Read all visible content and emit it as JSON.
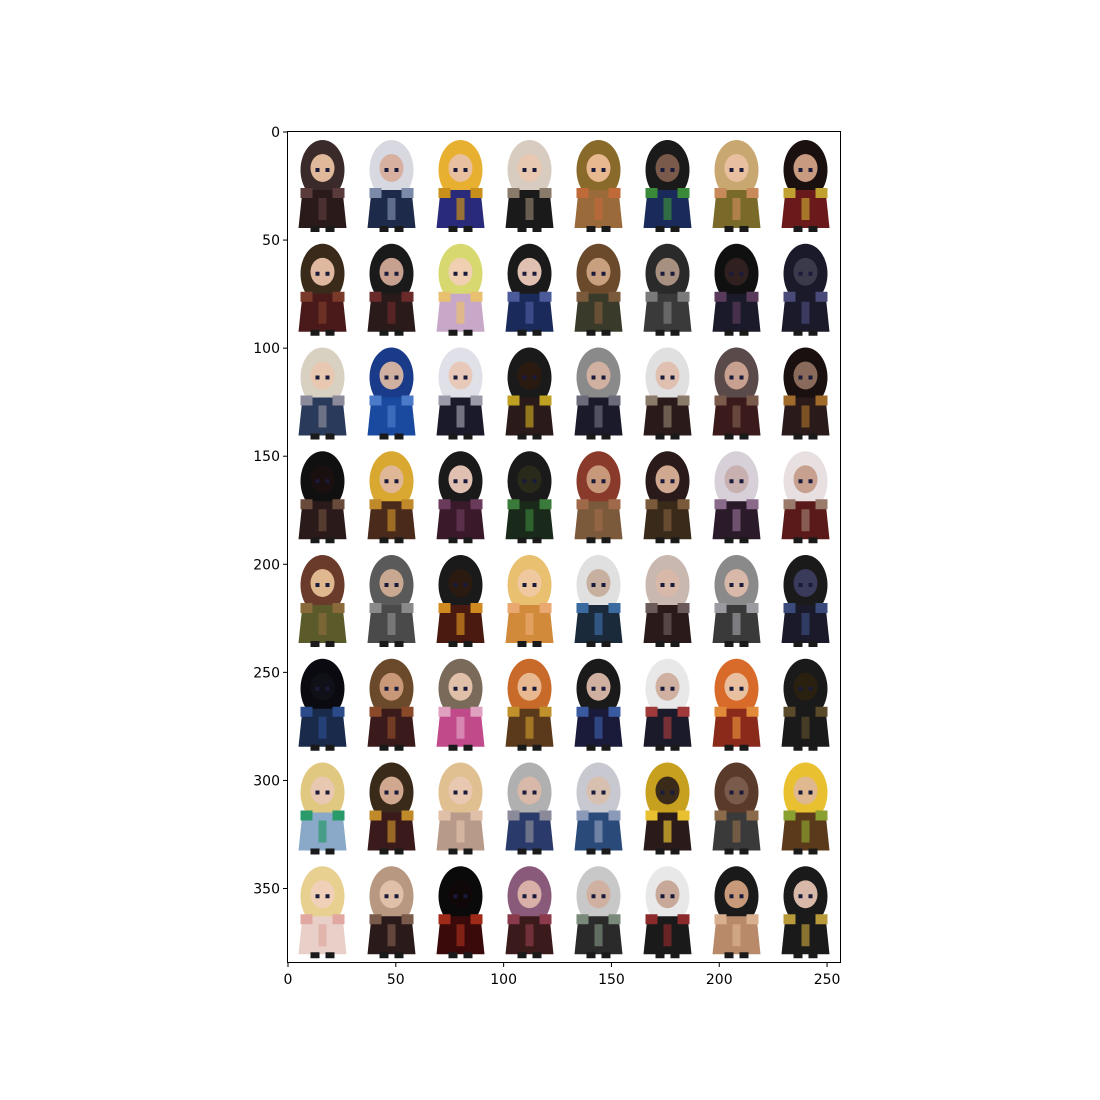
{
  "figure": {
    "background": "#ffffff",
    "image_grid": {
      "rows": 8,
      "cols": 8,
      "image_width": 256,
      "image_height": 384
    },
    "x_ticks": [
      0,
      50,
      100,
      150,
      200,
      250
    ],
    "y_ticks": [
      0,
      50,
      100,
      150,
      200,
      250,
      300,
      350
    ],
    "tiles": [
      {
        "hair": "#3a2a2a",
        "skin": "#e0b89a",
        "outfit": "#2a1a1a",
        "accent": "#5a3a3a"
      },
      {
        "hair": "#d8d8e0",
        "skin": "#d8b0a0",
        "outfit": "#1e2a4a",
        "accent": "#7a8aa8"
      },
      {
        "hair": "#e8b030",
        "skin": "#e8c0a0",
        "outfit": "#2a2a7a",
        "accent": "#c8901a"
      },
      {
        "hair": "#d8ccc0",
        "skin": "#e8c8b0",
        "outfit": "#1a1a1a",
        "accent": "#8a7a6a"
      },
      {
        "hair": "#8a6a2a",
        "skin": "#e8b890",
        "outfit": "#9a6a3a",
        "accent": "#c06a3a"
      },
      {
        "hair": "#1a1a1a",
        "skin": "#7a5a4a",
        "outfit": "#1a2a5a",
        "accent": "#3a8a3a"
      },
      {
        "hair": "#c8a870",
        "skin": "#e8c0a0",
        "outfit": "#7a6a2a",
        "accent": "#c88a5a"
      },
      {
        "hair": "#1a1010",
        "skin": "#c89a80",
        "outfit": "#6a1a1a",
        "accent": "#c0a030"
      },
      {
        "hair": "#3a2a1a",
        "skin": "#e0b8a0",
        "outfit": "#4a1a1a",
        "accent": "#7a3a2a"
      },
      {
        "hair": "#1a1a1a",
        "skin": "#c8a090",
        "outfit": "#2a1a1a",
        "accent": "#6a2a2a"
      },
      {
        "hair": "#d8d870",
        "skin": "#f0d0b0",
        "outfit": "#c8a8c8",
        "accent": "#e8c070"
      },
      {
        "hair": "#1a1a1a",
        "skin": "#e0c0b0",
        "outfit": "#1a2a5a",
        "accent": "#4a5a9a"
      },
      {
        "hair": "#6a4a2a",
        "skin": "#c8a080",
        "outfit": "#3a3a2a",
        "accent": "#7a5a3a"
      },
      {
        "hair": "#2a2a2a",
        "skin": "#a89080",
        "outfit": "#3a3a3a",
        "accent": "#7a7a7a"
      },
      {
        "hair": "#101010",
        "skin": "#302020",
        "outfit": "#1a1a2a",
        "accent": "#5a3a5a"
      },
      {
        "hair": "#1a1a2a",
        "skin": "#3a3a4a",
        "outfit": "#1a1a2a",
        "accent": "#4a4a7a"
      },
      {
        "hair": "#d8d0c0",
        "skin": "#e8c8b0",
        "outfit": "#2a3a5a",
        "accent": "#8a8a9a"
      },
      {
        "hair": "#1a3a8a",
        "skin": "#d0b0a0",
        "outfit": "#1a4aa0",
        "accent": "#4a7ac8"
      },
      {
        "hair": "#e0e0e8",
        "skin": "#e8c8b8",
        "outfit": "#1a1a2a",
        "accent": "#9a9aa8"
      },
      {
        "hair": "#1a1a1a",
        "skin": "#2a1a10",
        "outfit": "#2a1a1a",
        "accent": "#c0a020"
      },
      {
        "hair": "#8a8a8a",
        "skin": "#d0b0a0",
        "outfit": "#1a1a2a",
        "accent": "#6a6a7a"
      },
      {
        "hair": "#e0e0e0",
        "skin": "#e0c0b0",
        "outfit": "#2a1a1a",
        "accent": "#8a7a6a"
      },
      {
        "hair": "#5a4a4a",
        "skin": "#c8a090",
        "outfit": "#3a1a1a",
        "accent": "#7a5a4a"
      },
      {
        "hair": "#1a1010",
        "skin": "#8a6a5a",
        "outfit": "#2a1a1a",
        "accent": "#a06a2a"
      },
      {
        "hair": "#101010",
        "skin": "#1a1010",
        "outfit": "#2a1a1a",
        "accent": "#6a4a3a"
      },
      {
        "hair": "#d8a830",
        "skin": "#e0b898",
        "outfit": "#4a2a1a",
        "accent": "#c08a2a"
      },
      {
        "hair": "#1a1a1a",
        "skin": "#e0c0b0",
        "outfit": "#3a1a2a",
        "accent": "#6a3a5a"
      },
      {
        "hair": "#1a1a1a",
        "skin": "#2a2a1a",
        "outfit": "#1a2a1a",
        "accent": "#3a7a3a"
      },
      {
        "hair": "#8a3a2a",
        "skin": "#c8987a",
        "outfit": "#7a5a3a",
        "accent": "#a06a4a"
      },
      {
        "hair": "#2a1a1a",
        "skin": "#d0a890",
        "outfit": "#3a2a1a",
        "accent": "#7a5a3a"
      },
      {
        "hair": "#d8d0d8",
        "skin": "#c8b0b0",
        "outfit": "#2a1a2a",
        "accent": "#8a6a8a"
      },
      {
        "hair": "#e8e0e0",
        "skin": "#c8a090",
        "outfit": "#5a1a1a",
        "accent": "#9a7a6a"
      },
      {
        "hair": "#6a3a2a",
        "skin": "#e0b890",
        "outfit": "#5a5a2a",
        "accent": "#8a6a3a"
      },
      {
        "hair": "#5a5a5a",
        "skin": "#c8a890",
        "outfit": "#4a4a4a",
        "accent": "#8a8a8a"
      },
      {
        "hair": "#1a1a1a",
        "skin": "#2a1a10",
        "outfit": "#4a1a10",
        "accent": "#d08a20"
      },
      {
        "hair": "#e8c070",
        "skin": "#f0c8a0",
        "outfit": "#d08a3a",
        "accent": "#e8a870"
      },
      {
        "hair": "#e0e0e0",
        "skin": "#c8b0a0",
        "outfit": "#1a2a3a",
        "accent": "#3a6aa0"
      },
      {
        "hair": "#c8b8b0",
        "skin": "#d8b8a8",
        "outfit": "#2a1a1a",
        "accent": "#6a5a5a"
      },
      {
        "hair": "#8a8a8a",
        "skin": "#d8b8a8",
        "outfit": "#3a3a3a",
        "accent": "#9a9aa0"
      },
      {
        "hair": "#1a1a1a",
        "skin": "#3a3a5a",
        "outfit": "#1a1a2a",
        "accent": "#3a4a7a"
      },
      {
        "hair": "#0a0a10",
        "skin": "#101018",
        "outfit": "#1a2a4a",
        "accent": "#2a4a8a"
      },
      {
        "hair": "#6a4a2a",
        "skin": "#c89878",
        "outfit": "#3a1a1a",
        "accent": "#8a4a2a"
      },
      {
        "hair": "#7a6a5a",
        "skin": "#e0c0a8",
        "outfit": "#c04a8a",
        "accent": "#e0a0c0"
      },
      {
        "hair": "#c86a2a",
        "skin": "#e8b890",
        "outfit": "#5a3a1a",
        "accent": "#c0902a"
      },
      {
        "hair": "#1a1a1a",
        "skin": "#d0b0a0",
        "outfit": "#1a1a3a",
        "accent": "#3a5aa0"
      },
      {
        "hair": "#e8e8e8",
        "skin": "#d0b0a0",
        "outfit": "#1a1a2a",
        "accent": "#a03a3a"
      },
      {
        "hair": "#d86a2a",
        "skin": "#e8c0a0",
        "outfit": "#8a2a1a",
        "accent": "#e08a3a"
      },
      {
        "hair": "#1a1a1a",
        "skin": "#2a2010",
        "outfit": "#1a1a1a",
        "accent": "#5a4a2a"
      },
      {
        "hair": "#e0c880",
        "skin": "#e8c8b0",
        "outfit": "#8aa8c8",
        "accent": "#2a9a6a"
      },
      {
        "hair": "#3a2a1a",
        "skin": "#d0a890",
        "outfit": "#3a1a1a",
        "accent": "#c08a2a"
      },
      {
        "hair": "#e0c090",
        "skin": "#e8c8b0",
        "outfit": "#b89a8a",
        "accent": "#e0c0a8"
      },
      {
        "hair": "#b0b0b0",
        "skin": "#d8b8a8",
        "outfit": "#2a3a6a",
        "accent": "#8a8a9a"
      },
      {
        "hair": "#c8c8d0",
        "skin": "#d8c0b0",
        "outfit": "#2a4a7a",
        "accent": "#8a9ab8"
      },
      {
        "hair": "#c8a020",
        "skin": "#3a2a1a",
        "outfit": "#2a1a1a",
        "accent": "#e8c030"
      },
      {
        "hair": "#5a3a2a",
        "skin": "#7a5a4a",
        "outfit": "#3a3a3a",
        "accent": "#8a6a4a"
      },
      {
        "hair": "#e8c030",
        "skin": "#e0b890",
        "outfit": "#5a3a1a",
        "accent": "#8aa030"
      },
      {
        "hair": "#e8d090",
        "skin": "#f0d0b8",
        "outfit": "#e8d0c8",
        "accent": "#e0a8a0"
      },
      {
        "hair": "#b89880",
        "skin": "#e0c0a8",
        "outfit": "#2a1a1a",
        "accent": "#7a5a4a"
      },
      {
        "hair": "#0a0a0a",
        "skin": "#100808",
        "outfit": "#3a0a0a",
        "accent": "#a02a1a"
      },
      {
        "hair": "#8a5a7a",
        "skin": "#d8b0a8",
        "outfit": "#3a1a1a",
        "accent": "#8a3a4a"
      },
      {
        "hair": "#c8c8c8",
        "skin": "#d0b0a0",
        "outfit": "#2a2a2a",
        "accent": "#7a8a7a"
      },
      {
        "hair": "#e8e8e8",
        "skin": "#c8a898",
        "outfit": "#1a1a1a",
        "accent": "#8a2a2a"
      },
      {
        "hair": "#1a1a1a",
        "skin": "#c89a7a",
        "outfit": "#b88a6a",
        "accent": "#d8b090"
      },
      {
        "hair": "#1a1a1a",
        "skin": "#d8b8a8",
        "outfit": "#1a1a1a",
        "accent": "#b89a3a"
      }
    ]
  }
}
